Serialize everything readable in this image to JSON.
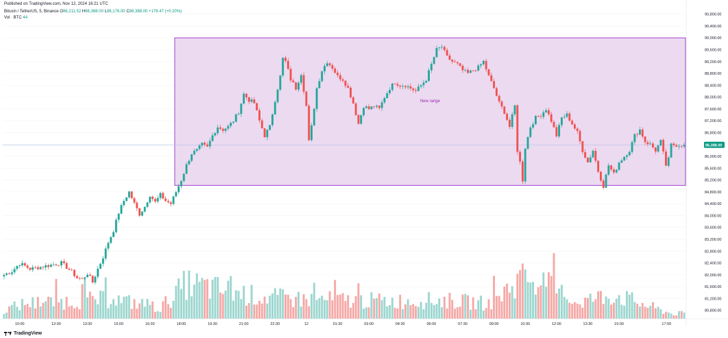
{
  "header": {
    "published": "Published on TradingView.com, Nov 12, 2024 16:21 UTC",
    "symbol": "Bitcoin / TetherUS, 5, Binance",
    "o_label": "O",
    "o_value": "86,211.52",
    "h_label": "H",
    "h_value": "86,388.00",
    "l_label": "L",
    "l_value": "86,176.00",
    "c_label": "C",
    "c_value": "86,388.00",
    "change": "+176.47 (+0.20%)",
    "volume_label": "Vol · BTC",
    "volume_value": "44"
  },
  "footer": {
    "brand": "TradingView"
  },
  "colors": {
    "up": "#26a69a",
    "down": "#ef5350",
    "vol_up": "#9cd6cf",
    "vol_down": "#f5a8a6",
    "range_fill": "#e9d3ef",
    "range_border": "#a43fcf",
    "range_text": "#9c27b0",
    "price_tag": "#089981"
  },
  "chart_data": {
    "type": "candlestick",
    "title": "Bitcoin / TetherUS, 5, Binance",
    "price_axis": {
      "ylim": [
        80400,
        91000
      ],
      "ticks": [
        "90,800.00",
        "90,400.00",
        "90,000.00",
        "89,600.00",
        "89,200.00",
        "88,800.00",
        "88,400.00",
        "88,000.00",
        "87,600.00",
        "87,200.00",
        "86,800.00",
        "86,400.00",
        "86,000.00",
        "85,600.00",
        "85,200.00",
        "84,800.00",
        "84,400.00",
        "84,000.00",
        "83,600.00",
        "83,200.00",
        "82,800.00",
        "82,400.00",
        "82,000.00",
        "81,600.00",
        "81,200.00",
        "80,800.00"
      ],
      "current_price": "86,388.00"
    },
    "time_axis": {
      "ticks": [
        "10:00",
        "12:00",
        "13:30",
        "15:00",
        "16:30",
        "18:00",
        "19:30",
        "21:00",
        "22:30",
        "12",
        "01:30",
        "03:00",
        "04:30",
        "06:00",
        "07:30",
        "09:00",
        "10:30",
        "12:00",
        "13:30",
        "15:00",
        "17:00"
      ]
    },
    "price_path": [
      [
        0,
        82000
      ],
      [
        3,
        82120
      ],
      [
        6,
        82380
      ],
      [
        8,
        82300
      ],
      [
        10,
        82200
      ],
      [
        13,
        82250
      ],
      [
        16,
        82300
      ],
      [
        19,
        82350
      ],
      [
        22,
        82400
      ],
      [
        24,
        82260
      ],
      [
        26,
        82100
      ],
      [
        28,
        81900
      ],
      [
        30,
        81850
      ],
      [
        32,
        82050
      ],
      [
        34,
        81750
      ],
      [
        36,
        82200
      ],
      [
        38,
        82600
      ],
      [
        40,
        83100
      ],
      [
        42,
        83500
      ],
      [
        44,
        84100
      ],
      [
        46,
        84500
      ],
      [
        48,
        84800
      ],
      [
        50,
        84400
      ],
      [
        52,
        84050
      ],
      [
        54,
        84300
      ],
      [
        56,
        84700
      ],
      [
        58,
        84450
      ],
      [
        60,
        84700
      ],
      [
        62,
        84500
      ],
      [
        64,
        84400
      ],
      [
        66,
        84800
      ],
      [
        68,
        85200
      ],
      [
        70,
        85700
      ],
      [
        72,
        86100
      ],
      [
        74,
        86200
      ],
      [
        76,
        86400
      ],
      [
        78,
        86300
      ],
      [
        80,
        86700
      ],
      [
        82,
        87000
      ],
      [
        84,
        86900
      ],
      [
        86,
        87000
      ],
      [
        88,
        87200
      ],
      [
        90,
        87500
      ],
      [
        92,
        88100
      ],
      [
        94,
        87900
      ],
      [
        96,
        87800
      ],
      [
        98,
        87200
      ],
      [
        100,
        86700
      ],
      [
        102,
        87000
      ],
      [
        104,
        87900
      ],
      [
        106,
        88700
      ],
      [
        107,
        89300
      ],
      [
        108,
        89200
      ],
      [
        110,
        88600
      ],
      [
        112,
        88300
      ],
      [
        114,
        88800
      ],
      [
        116,
        87700
      ],
      [
        117,
        86500
      ],
      [
        118,
        87000
      ],
      [
        120,
        88300
      ],
      [
        122,
        88900
      ],
      [
        124,
        89200
      ],
      [
        126,
        89000
      ],
      [
        128,
        88700
      ],
      [
        130,
        88600
      ],
      [
        132,
        88300
      ],
      [
        134,
        87800
      ],
      [
        136,
        87100
      ],
      [
        138,
        87700
      ],
      [
        140,
        87600
      ],
      [
        142,
        87700
      ],
      [
        144,
        87600
      ],
      [
        146,
        88000
      ],
      [
        148,
        88300
      ],
      [
        150,
        88500
      ],
      [
        152,
        88400
      ],
      [
        154,
        88400
      ],
      [
        156,
        88300
      ],
      [
        158,
        88200
      ],
      [
        160,
        88400
      ],
      [
        162,
        88600
      ],
      [
        164,
        89100
      ],
      [
        166,
        89600
      ],
      [
        168,
        89700
      ],
      [
        170,
        89350
      ],
      [
        172,
        89200
      ],
      [
        174,
        89100
      ],
      [
        176,
        88900
      ],
      [
        178,
        88800
      ],
      [
        180,
        88900
      ],
      [
        182,
        89000
      ],
      [
        184,
        89200
      ],
      [
        186,
        88700
      ],
      [
        188,
        88300
      ],
      [
        190,
        87800
      ],
      [
        192,
        87500
      ],
      [
        194,
        87000
      ],
      [
        196,
        87700
      ],
      [
        197,
        86200
      ],
      [
        198,
        85800
      ],
      [
        199,
        85200
      ],
      [
        200,
        86300
      ],
      [
        202,
        87000
      ],
      [
        204,
        87300
      ],
      [
        206,
        87400
      ],
      [
        208,
        87600
      ],
      [
        210,
        87200
      ],
      [
        212,
        86700
      ],
      [
        214,
        87300
      ],
      [
        216,
        87400
      ],
      [
        218,
        87100
      ],
      [
        220,
        86800
      ],
      [
        222,
        86200
      ],
      [
        224,
        85800
      ],
      [
        226,
        86200
      ],
      [
        228,
        85500
      ],
      [
        230,
        85000
      ],
      [
        232,
        85700
      ],
      [
        234,
        85400
      ],
      [
        236,
        85800
      ],
      [
        238,
        86000
      ],
      [
        240,
        86200
      ],
      [
        242,
        86700
      ],
      [
        244,
        86900
      ],
      [
        246,
        86500
      ],
      [
        248,
        86400
      ],
      [
        250,
        86200
      ],
      [
        252,
        86500
      ],
      [
        254,
        85700
      ],
      [
        255,
        85900
      ],
      [
        256,
        86388
      ]
    ],
    "range_box": {
      "label": "New range",
      "top_price": 90000,
      "bottom_price": 85020,
      "start_index": 66,
      "end_index": 262
    },
    "volume_peaks": [
      [
        0,
        20
      ],
      [
        8,
        35
      ],
      [
        42,
        45
      ],
      [
        60,
        25
      ],
      [
        70,
        80
      ],
      [
        98,
        50
      ],
      [
        112,
        45
      ],
      [
        150,
        40
      ],
      [
        168,
        42
      ],
      [
        186,
        35
      ],
      [
        194,
        70
      ],
      [
        200,
        100
      ],
      [
        220,
        38
      ],
      [
        234,
        55
      ],
      [
        256,
        12
      ]
    ]
  }
}
